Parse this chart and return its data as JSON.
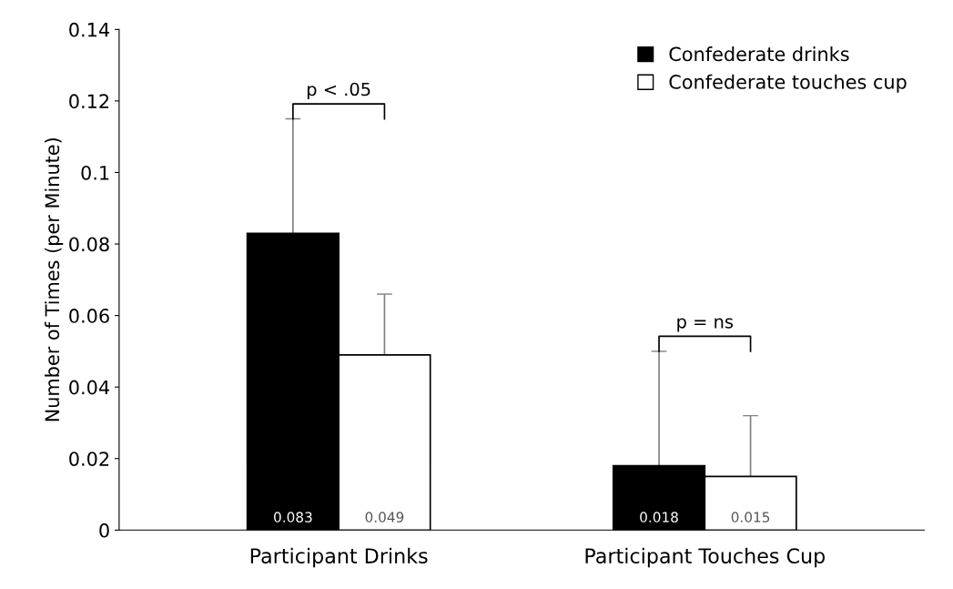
{
  "chart_data": {
    "type": "bar",
    "categories": [
      "Participant Drinks",
      "Participant Touches Cup"
    ],
    "ylabel": "Number of Times (per Minute)",
    "series": [
      {
        "name": "Confederate drinks",
        "color": "#000000",
        "values": [
          0.083,
          0.018
        ],
        "errors": [
          0.032,
          0.032
        ]
      },
      {
        "name": "Confederate touches cup",
        "color": "#ffffff",
        "values": [
          0.049,
          0.015
        ],
        "errors": [
          0.017,
          0.017
        ]
      }
    ],
    "ylim": [
      0,
      0.14
    ],
    "yticks": [
      0,
      0.02,
      0.04,
      0.06,
      0.08,
      0.1,
      0.12,
      0.14
    ],
    "data_labels": true,
    "legend": "top right",
    "grid": false,
    "annotations": [
      "p < .05",
      "p = ns"
    ]
  }
}
